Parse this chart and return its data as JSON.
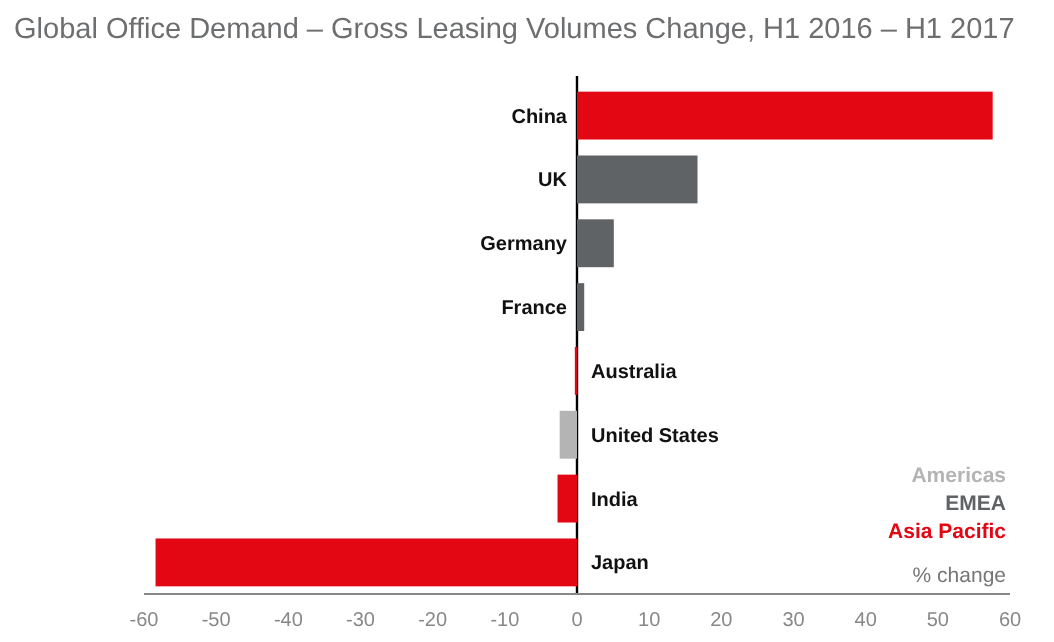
{
  "chart_data": {
    "type": "bar",
    "orientation": "horizontal",
    "title": "Global Office Demand – Gross Leasing Volumes Change, H1 2016 – H1 2017",
    "xlabel": "% change",
    "categories": [
      "China",
      "UK",
      "Germany",
      "France",
      "Australia",
      "United States",
      "India",
      "Japan"
    ],
    "series": [
      {
        "name": "Americas",
        "color": "#b4b4b4",
        "values": [
          null,
          null,
          null,
          null,
          null,
          -2.4,
          null,
          null
        ]
      },
      {
        "name": "EMEA",
        "color": "#606366",
        "values": [
          null,
          16.7,
          5.1,
          1.0,
          null,
          null,
          null,
          null
        ]
      },
      {
        "name": "Asia Pacific",
        "color": "#e30613",
        "values": [
          57.6,
          null,
          null,
          null,
          -0.3,
          null,
          -2.7,
          -58.4
        ]
      }
    ],
    "xlim": [
      -60,
      60
    ],
    "xticks": [
      -60,
      -50,
      -40,
      -30,
      -20,
      -10,
      0,
      10,
      20,
      30,
      40,
      50,
      60
    ],
    "grid": false,
    "legend": "bottom right"
  }
}
